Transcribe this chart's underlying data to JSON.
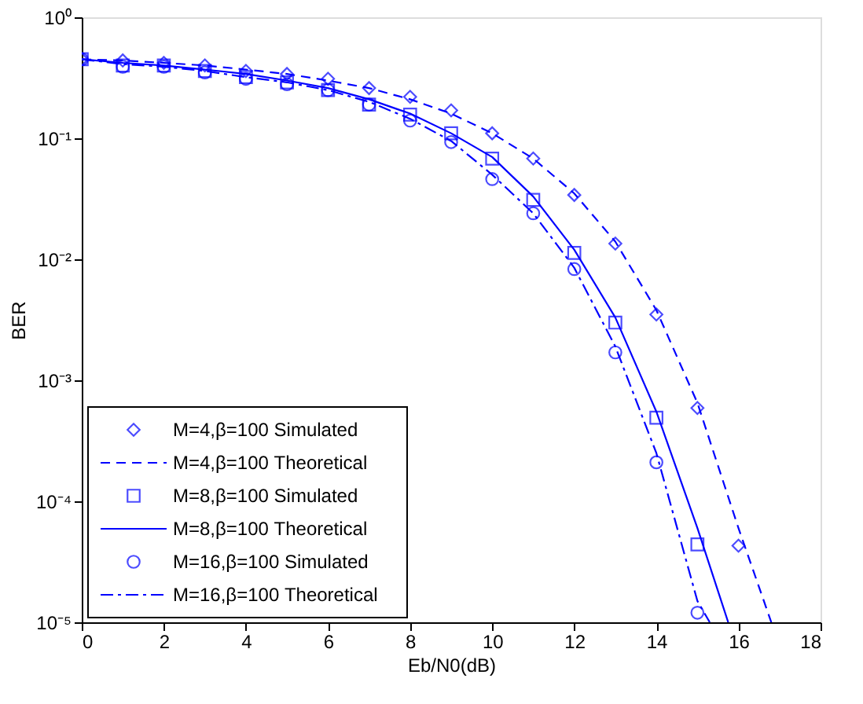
{
  "chart_data": {
    "type": "line",
    "xlabel": "Eb/N0(dB)",
    "ylabel": "BER",
    "log": "y",
    "grid": false,
    "legend": "bottom left",
    "xlim": [
      0,
      18
    ],
    "xticks": [
      0,
      2,
      4,
      6,
      8,
      10,
      12,
      14,
      16,
      18
    ],
    "ylim": [
      1e-05,
      1
    ],
    "yticks": [
      {
        "value": 1,
        "label": "10⁰"
      },
      {
        "value": 0.1,
        "label": "10⁻¹"
      },
      {
        "value": 0.01,
        "label": "10⁻²"
      },
      {
        "value": 0.001,
        "label": "10⁻³"
      },
      {
        "value": 0.0001,
        "label": "10⁻⁴"
      },
      {
        "value": 1e-05,
        "label": "10⁻⁵"
      }
    ],
    "series": [
      {
        "name": "M=4,β=100 Simulated",
        "type": "scatter",
        "marker": "diamond",
        "color": "#0000ff",
        "x": [
          0,
          1,
          2,
          3,
          4,
          5,
          6,
          7,
          8,
          9,
          10,
          11,
          12,
          13,
          14,
          15,
          16
        ],
        "values": [
          0.45,
          0.44,
          0.42,
          0.4,
          0.36,
          0.34,
          0.31,
          0.26,
          0.22,
          0.17,
          0.11,
          0.068,
          0.034,
          0.0135,
          0.0035,
          0.00059,
          4.3e-05
        ]
      },
      {
        "name": "M=4,β=100  Theoretical",
        "type": "line",
        "line_style": "dashed",
        "color": "#0000ff",
        "x": [
          0,
          1,
          2,
          3,
          4,
          5,
          6,
          7,
          8,
          9,
          10,
          11,
          12,
          13,
          14,
          15,
          16,
          16.8
        ],
        "values": [
          0.45,
          0.44,
          0.42,
          0.4,
          0.37,
          0.34,
          0.3,
          0.26,
          0.21,
          0.16,
          0.11,
          0.068,
          0.035,
          0.014,
          0.0038,
          0.00065,
          6e-05,
          1e-05
        ]
      },
      {
        "name": "M=8,β=100 Simulated",
        "type": "scatter",
        "marker": "square",
        "color": "#0000ff",
        "x": [
          0,
          1,
          2,
          3,
          4,
          5,
          6,
          7,
          8,
          9,
          10,
          11,
          12,
          13,
          14,
          15
        ],
        "values": [
          0.45,
          0.4,
          0.4,
          0.36,
          0.32,
          0.29,
          0.25,
          0.19,
          0.157,
          0.11,
          0.068,
          0.031,
          0.0113,
          0.003,
          0.00049,
          4.4e-05
        ]
      },
      {
        "name": "M=8,β=100  Theoretical",
        "type": "line",
        "line_style": "solid",
        "color": "#0000ff",
        "x": [
          0,
          1,
          2,
          3,
          4,
          5,
          6,
          7,
          8,
          9,
          10,
          11,
          12,
          13,
          14,
          15,
          15.75
        ],
        "values": [
          0.45,
          0.42,
          0.4,
          0.37,
          0.34,
          0.3,
          0.26,
          0.21,
          0.16,
          0.11,
          0.07,
          0.033,
          0.012,
          0.0033,
          0.00055,
          6e-05,
          1e-05
        ]
      },
      {
        "name": "M=16,β=100 Simulated",
        "type": "scatter",
        "marker": "circle",
        "color": "#0000ff",
        "x": [
          0,
          1,
          2,
          3,
          4,
          5,
          6,
          7,
          8,
          9,
          10,
          11,
          12,
          13,
          14,
          15
        ],
        "values": [
          0.45,
          0.39,
          0.39,
          0.35,
          0.31,
          0.28,
          0.25,
          0.19,
          0.14,
          0.093,
          0.046,
          0.024,
          0.0083,
          0.0017,
          0.00021,
          1.2e-05
        ]
      },
      {
        "name": "M=16,β=100  Theoretical",
        "type": "line",
        "line_style": "dashdot",
        "color": "#0000ff",
        "x": [
          0,
          1,
          2,
          3,
          4,
          5,
          6,
          7,
          8,
          9,
          10,
          11,
          12,
          13,
          14,
          15,
          15.3
        ],
        "values": [
          0.45,
          0.41,
          0.39,
          0.36,
          0.32,
          0.29,
          0.25,
          0.2,
          0.145,
          0.095,
          0.05,
          0.024,
          0.0085,
          0.0019,
          0.00025,
          1.5e-05,
          1e-05
        ]
      }
    ]
  }
}
